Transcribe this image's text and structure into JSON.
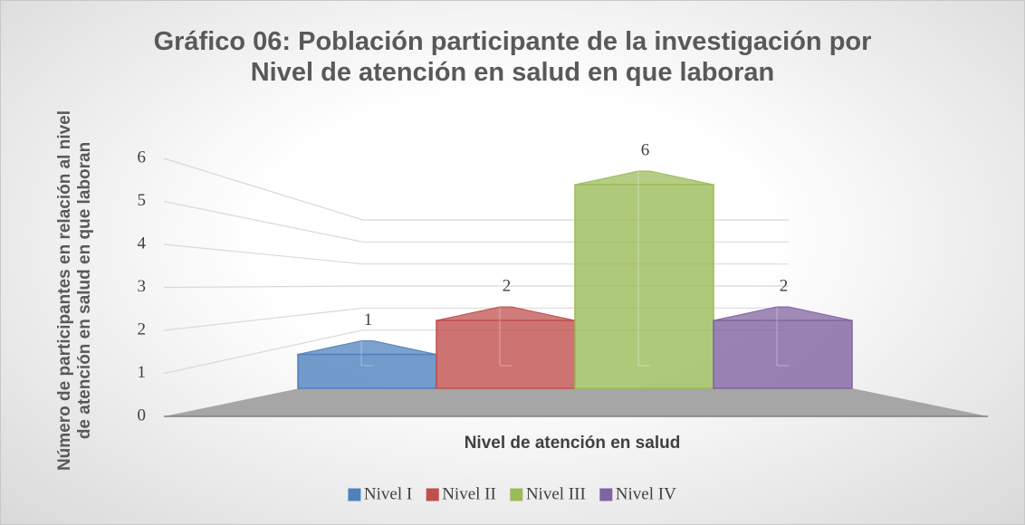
{
  "chart_data": {
    "type": "bar3d",
    "title": "Gráfico 06: Población participante de la investigación por Nivel de atención en salud en que laboran",
    "y_label": "Número de participantes  en relación al nivel de atención en salud en que laboran",
    "x_label": "Nivel de atención en salud",
    "ylim": [
      0,
      6
    ],
    "yticks": [
      0,
      1,
      2,
      3,
      4,
      5,
      6
    ],
    "grid": true,
    "legend": "bottom",
    "series": [
      {
        "name": "Nivel I",
        "color": "#4f81bd",
        "values": [
          1
        ]
      },
      {
        "name": "Nivel II",
        "color": "#c0504d",
        "values": [
          2
        ]
      },
      {
        "name": "Nivel III",
        "color": "#9bbb59",
        "values": [
          6
        ]
      },
      {
        "name": "Nivel IV",
        "color": "#8064a2",
        "values": [
          2
        ]
      }
    ]
  }
}
